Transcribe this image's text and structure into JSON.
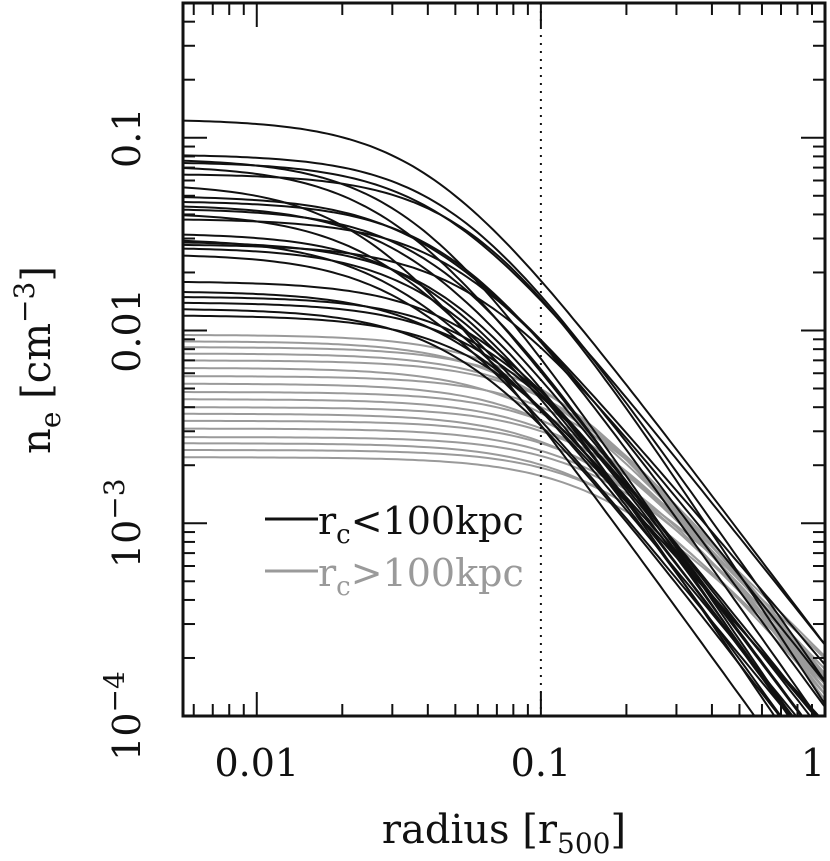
{
  "chart_data": {
    "type": "line",
    "x_scale": "log",
    "y_scale": "log",
    "xlim": [
      0.0055,
      1.0
    ],
    "ylim": [
      0.0001,
      0.5
    ],
    "x_ticks": [
      {
        "value": 0.01,
        "label": "0.01"
      },
      {
        "value": 0.1,
        "label": "0.1"
      },
      {
        "value": 1,
        "label": "1"
      }
    ],
    "y_ticks": [
      {
        "value": 0.0001,
        "base": "10",
        "exp": "−4",
        "label": "10^-4"
      },
      {
        "value": 0.001,
        "base": "10",
        "exp": "−3",
        "label": "10^-3"
      },
      {
        "value": 0.01,
        "label": "0.01"
      },
      {
        "value": 0.1,
        "label": "0.1"
      }
    ],
    "xlabel": {
      "main": "radius [r",
      "sub": "500",
      "end": "]"
    },
    "ylabel": {
      "main": "n",
      "sub": "e",
      "mid": " [cm",
      "sup": "−3",
      "end": "]"
    },
    "reference_line": {
      "x": 0.1,
      "style": "dotted"
    },
    "legend": [
      {
        "label_main": "r",
        "label_sub": "c",
        "label_rest": "<100kpc",
        "color": "#111111"
      },
      {
        "label_main": "r",
        "label_sub": "c",
        "label_rest": ">100kpc",
        "color": "#9a9a9a"
      }
    ],
    "series": [
      {
        "group": "rc<100kpc",
        "color": "#111111",
        "n0": 0.125,
        "rc": 0.04,
        "beta": 0.65
      },
      {
        "group": "rc<100kpc",
        "color": "#111111",
        "n0": 0.082,
        "rc": 0.05,
        "beta": 0.7
      },
      {
        "group": "rc<100kpc",
        "color": "#111111",
        "n0": 0.078,
        "rc": 0.035,
        "beta": 0.72
      },
      {
        "group": "rc<100kpc",
        "color": "#111111",
        "n0": 0.075,
        "rc": 0.045,
        "beta": 0.62
      },
      {
        "group": "rc<100kpc",
        "color": "#111111",
        "n0": 0.072,
        "rc": 0.03,
        "beta": 0.66
      },
      {
        "group": "rc<100kpc",
        "color": "#111111",
        "n0": 0.065,
        "rc": 0.06,
        "beta": 0.75
      },
      {
        "group": "rc<100kpc",
        "color": "#111111",
        "n0": 0.058,
        "rc": 0.025,
        "beta": 0.68
      },
      {
        "group": "rc<100kpc",
        "color": "#111111",
        "n0": 0.05,
        "rc": 0.04,
        "beta": 0.58
      },
      {
        "group": "rc<100kpc",
        "color": "#111111",
        "n0": 0.047,
        "rc": 0.05,
        "beta": 0.7
      },
      {
        "group": "rc<100kpc",
        "color": "#111111",
        "n0": 0.045,
        "rc": 0.035,
        "beta": 0.63
      },
      {
        "group": "rc<100kpc",
        "color": "#111111",
        "n0": 0.043,
        "rc": 0.045,
        "beta": 0.72
      },
      {
        "group": "rc<100kpc",
        "color": "#111111",
        "n0": 0.041,
        "rc": 0.028,
        "beta": 0.6
      },
      {
        "group": "rc<100kpc",
        "color": "#111111",
        "n0": 0.038,
        "rc": 0.055,
        "beta": 0.67
      },
      {
        "group": "rc<100kpc",
        "color": "#111111",
        "n0": 0.032,
        "rc": 0.04,
        "beta": 0.65
      },
      {
        "group": "rc<100kpc",
        "color": "#111111",
        "n0": 0.03,
        "rc": 0.03,
        "beta": 0.55
      },
      {
        "group": "rc<100kpc",
        "color": "#111111",
        "n0": 0.029,
        "rc": 0.05,
        "beta": 0.73
      },
      {
        "group": "rc<100kpc",
        "color": "#111111",
        "n0": 0.028,
        "rc": 0.06,
        "beta": 0.62
      },
      {
        "group": "rc<100kpc",
        "color": "#111111",
        "n0": 0.027,
        "rc": 0.045,
        "beta": 0.68
      },
      {
        "group": "rc<100kpc",
        "color": "#111111",
        "n0": 0.025,
        "rc": 0.035,
        "beta": 0.6
      },
      {
        "group": "rc<100kpc",
        "color": "#111111",
        "n0": 0.018,
        "rc": 0.06,
        "beta": 0.66
      },
      {
        "group": "rc<100kpc",
        "color": "#111111",
        "n0": 0.016,
        "rc": 0.05,
        "beta": 0.58
      },
      {
        "group": "rc<100kpc",
        "color": "#111111",
        "n0": 0.015,
        "rc": 0.07,
        "beta": 0.7
      },
      {
        "group": "rc<100kpc",
        "color": "#111111",
        "n0": 0.014,
        "rc": 0.065,
        "beta": 0.62
      },
      {
        "group": "rc<100kpc",
        "color": "#111111",
        "n0": 0.013,
        "rc": 0.055,
        "beta": 0.64
      },
      {
        "group": "rc<100kpc",
        "color": "#111111",
        "n0": 0.012,
        "rc": 0.07,
        "beta": 0.67
      },
      {
        "group": "rc>100kpc",
        "color": "#9a9a9a",
        "n0": 0.0095,
        "rc": 0.1,
        "beta": 0.62
      },
      {
        "group": "rc>100kpc",
        "color": "#9a9a9a",
        "n0": 0.0088,
        "rc": 0.09,
        "beta": 0.55
      },
      {
        "group": "rc>100kpc",
        "color": "#9a9a9a",
        "n0": 0.0082,
        "rc": 0.12,
        "beta": 0.66
      },
      {
        "group": "rc>100kpc",
        "color": "#9a9a9a",
        "n0": 0.0076,
        "rc": 0.11,
        "beta": 0.58
      },
      {
        "group": "rc>100kpc",
        "color": "#9a9a9a",
        "n0": 0.007,
        "rc": 0.13,
        "beta": 0.63
      },
      {
        "group": "rc>100kpc",
        "color": "#9a9a9a",
        "n0": 0.0064,
        "rc": 0.1,
        "beta": 0.52
      },
      {
        "group": "rc>100kpc",
        "color": "#9a9a9a",
        "n0": 0.0058,
        "rc": 0.14,
        "beta": 0.6
      },
      {
        "group": "rc>100kpc",
        "color": "#9a9a9a",
        "n0": 0.0053,
        "rc": 0.12,
        "beta": 0.55
      },
      {
        "group": "rc>100kpc",
        "color": "#9a9a9a",
        "n0": 0.0048,
        "rc": 0.15,
        "beta": 0.62
      },
      {
        "group": "rc>100kpc",
        "color": "#9a9a9a",
        "n0": 0.0044,
        "rc": 0.13,
        "beta": 0.5
      },
      {
        "group": "rc>100kpc",
        "color": "#9a9a9a",
        "n0": 0.004,
        "rc": 0.16,
        "beta": 0.58
      },
      {
        "group": "rc>100kpc",
        "color": "#9a9a9a",
        "n0": 0.0037,
        "rc": 0.14,
        "beta": 0.54
      },
      {
        "group": "rc>100kpc",
        "color": "#9a9a9a",
        "n0": 0.0034,
        "rc": 0.17,
        "beta": 0.6
      },
      {
        "group": "rc>100kpc",
        "color": "#9a9a9a",
        "n0": 0.0031,
        "rc": 0.15,
        "beta": 0.48
      },
      {
        "group": "rc>100kpc",
        "color": "#9a9a9a",
        "n0": 0.0028,
        "rc": 0.18,
        "beta": 0.56
      },
      {
        "group": "rc>100kpc",
        "color": "#9a9a9a",
        "n0": 0.0026,
        "rc": 0.16,
        "beta": 0.52
      },
      {
        "group": "rc>100kpc",
        "color": "#9a9a9a",
        "n0": 0.0024,
        "rc": 0.19,
        "beta": 0.58
      },
      {
        "group": "rc>100kpc",
        "color": "#9a9a9a",
        "n0": 0.0022,
        "rc": 0.17,
        "beta": 0.5
      }
    ]
  }
}
